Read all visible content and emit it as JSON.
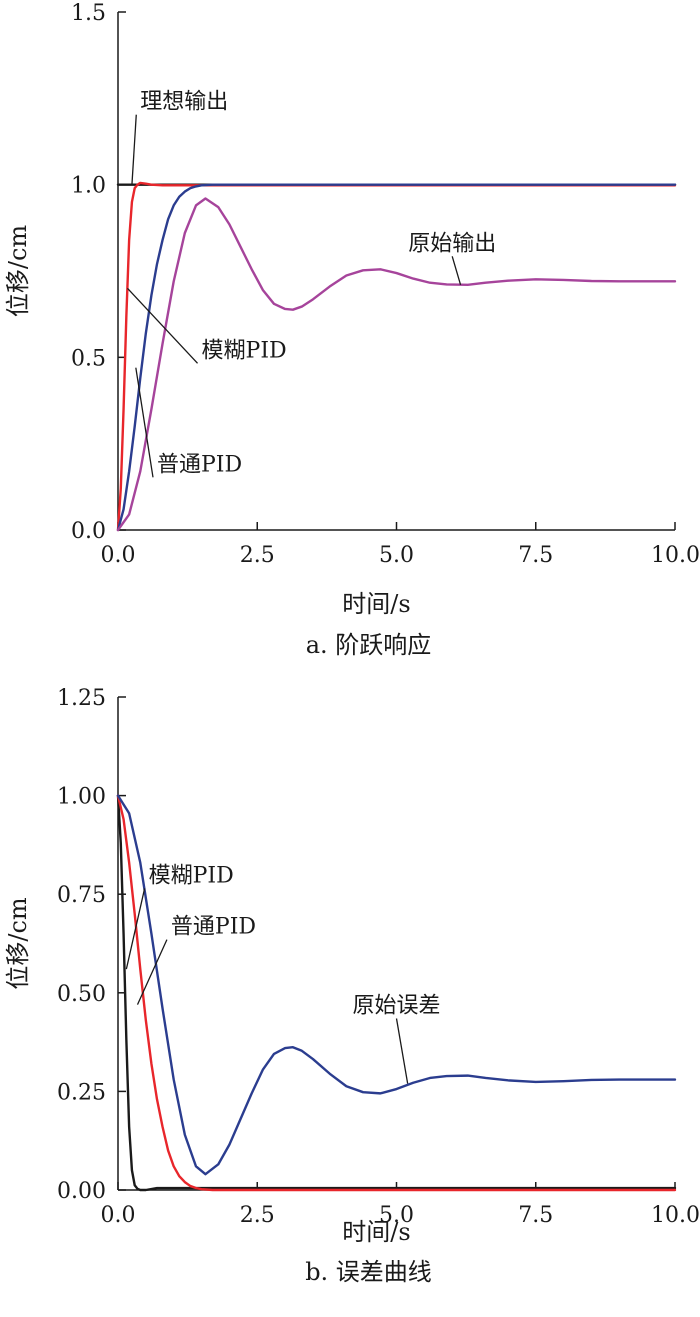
{
  "chart_data": [
    {
      "type": "line",
      "caption": "a. 阶跃响应",
      "xlabel": "时间/s",
      "ylabel": "位移/cm",
      "xlim": [
        0,
        10
      ],
      "ylim": [
        0,
        1.5
      ],
      "xticks": [
        "0.0",
        "2.5",
        "5.0",
        "7.5",
        "10.0"
      ],
      "yticks": [
        "0.0",
        "0.5",
        "1.0",
        "1.5"
      ],
      "series": [
        {
          "name": "理想输出",
          "color": "#1a1a1a",
          "x": [
            0,
            0.25,
            10
          ],
          "y": [
            1.0,
            1.0,
            1.0
          ]
        },
        {
          "name": "模糊PID",
          "color": "#e8262b",
          "x": [
            0,
            0.05,
            0.1,
            0.15,
            0.2,
            0.25,
            0.3,
            0.35,
            0.4,
            0.5,
            0.6,
            0.8,
            1.0,
            1.5,
            2.0,
            3.0,
            10.0
          ],
          "y": [
            0,
            0.12,
            0.35,
            0.62,
            0.84,
            0.95,
            0.99,
            1.0,
            1.005,
            1.003,
            1.0,
            0.998,
            0.998,
            0.998,
            0.998,
            0.998,
            0.998
          ]
        },
        {
          "name": "普通PID",
          "color": "#2b3d8f",
          "x": [
            0,
            0.1,
            0.2,
            0.3,
            0.4,
            0.5,
            0.6,
            0.7,
            0.8,
            0.9,
            1.0,
            1.1,
            1.2,
            1.3,
            1.4,
            1.5,
            1.7,
            2.0,
            3.0,
            10.0
          ],
          "y": [
            0,
            0.06,
            0.17,
            0.3,
            0.44,
            0.57,
            0.68,
            0.77,
            0.84,
            0.9,
            0.94,
            0.965,
            0.98,
            0.99,
            0.995,
            0.998,
            1.0,
            1.0,
            1.0,
            1.0
          ]
        },
        {
          "name": "原始输出",
          "color": "#a6449b",
          "x": [
            0,
            0.2,
            0.4,
            0.6,
            0.8,
            1.0,
            1.2,
            1.4,
            1.57,
            1.8,
            2.0,
            2.2,
            2.4,
            2.6,
            2.8,
            3.0,
            3.14,
            3.3,
            3.5,
            3.8,
            4.1,
            4.4,
            4.71,
            5.0,
            5.3,
            5.6,
            5.9,
            6.28,
            6.6,
            7.0,
            7.5,
            8.0,
            8.5,
            9.0,
            9.5,
            10.0
          ],
          "y": [
            0,
            0.045,
            0.17,
            0.35,
            0.54,
            0.72,
            0.86,
            0.94,
            0.96,
            0.935,
            0.885,
            0.82,
            0.755,
            0.695,
            0.655,
            0.64,
            0.638,
            0.647,
            0.668,
            0.705,
            0.737,
            0.752,
            0.755,
            0.744,
            0.728,
            0.716,
            0.711,
            0.71,
            0.716,
            0.722,
            0.726,
            0.724,
            0.721,
            0.72,
            0.72,
            0.72
          ]
        }
      ],
      "annotations": [
        {
          "text": "理想输出",
          "x": 0.4,
          "y": 1.22,
          "pointX": 0.25,
          "pointY": 1.0,
          "anchor": "start"
        },
        {
          "text": "原始输出",
          "x": 6.0,
          "y": 0.81,
          "pointX": 6.15,
          "pointY": 0.71,
          "anchor": "middle"
        },
        {
          "text": "模糊PID",
          "x": 1.5,
          "y": 0.5,
          "pointX": 0.17,
          "pointY": 0.7,
          "anchor": "start"
        },
        {
          "text": "普通PID",
          "x": 0.7,
          "y": 0.17,
          "pointX": 0.32,
          "pointY": 0.47,
          "anchor": "start"
        }
      ]
    },
    {
      "type": "line",
      "caption": "b. 误差曲线",
      "xlabel": "时间/s",
      "ylabel": "位移/cm",
      "xlim": [
        0,
        10
      ],
      "ylim": [
        0,
        1.25
      ],
      "xticks": [
        "0.0",
        "2.5",
        "5.0",
        "7.5",
        "10.0"
      ],
      "yticks": [
        "0.00",
        "0.25",
        "0.50",
        "0.75",
        "1.00",
        "1.25"
      ],
      "series": [
        {
          "name": "模糊PID",
          "color": "#1a1a1a",
          "x": [
            0,
            0.05,
            0.1,
            0.15,
            0.2,
            0.25,
            0.3,
            0.35,
            0.4,
            0.5,
            0.7,
            1.0,
            2.0,
            10.0
          ],
          "y": [
            1.0,
            0.88,
            0.65,
            0.38,
            0.16,
            0.05,
            0.012,
            0.003,
            0.0,
            0.0,
            0.005,
            0.005,
            0.005,
            0.005
          ]
        },
        {
          "name": "普通PID",
          "color": "#e8262b",
          "x": [
            0,
            0.1,
            0.2,
            0.3,
            0.4,
            0.5,
            0.6,
            0.7,
            0.8,
            0.9,
            1.0,
            1.1,
            1.2,
            1.3,
            1.4,
            1.5,
            1.7,
            2.0,
            3.0,
            10.0
          ],
          "y": [
            1.0,
            0.94,
            0.83,
            0.7,
            0.56,
            0.43,
            0.32,
            0.23,
            0.16,
            0.1,
            0.06,
            0.035,
            0.02,
            0.01,
            0.005,
            0.002,
            0.0,
            0.0,
            0.0,
            0.0
          ]
        },
        {
          "name": "原始误差",
          "color": "#2b3d8f",
          "x": [
            0,
            0.2,
            0.4,
            0.6,
            0.8,
            1.0,
            1.2,
            1.4,
            1.57,
            1.8,
            2.0,
            2.2,
            2.4,
            2.6,
            2.8,
            3.0,
            3.14,
            3.3,
            3.5,
            3.8,
            4.1,
            4.4,
            4.71,
            5.0,
            5.3,
            5.6,
            5.9,
            6.28,
            6.6,
            7.0,
            7.5,
            8.0,
            8.5,
            9.0,
            9.5,
            10.0
          ],
          "y": [
            1.0,
            0.955,
            0.83,
            0.65,
            0.46,
            0.28,
            0.14,
            0.06,
            0.04,
            0.065,
            0.115,
            0.18,
            0.245,
            0.305,
            0.345,
            0.36,
            0.362,
            0.353,
            0.332,
            0.295,
            0.263,
            0.248,
            0.245,
            0.256,
            0.272,
            0.284,
            0.289,
            0.29,
            0.284,
            0.278,
            0.274,
            0.276,
            0.279,
            0.28,
            0.28,
            0.28
          ]
        }
      ],
      "annotations": [
        {
          "text": "模糊PID",
          "x": 0.55,
          "y": 0.78,
          "pointX": 0.15,
          "pointY": 0.56,
          "anchor": "start"
        },
        {
          "text": "普通PID",
          "x": 0.95,
          "y": 0.65,
          "pointX": 0.35,
          "pointY": 0.47,
          "anchor": "start"
        },
        {
          "text": "原始误差",
          "x": 5.0,
          "y": 0.45,
          "pointX": 5.2,
          "pointY": 0.27,
          "anchor": "middle"
        }
      ]
    }
  ]
}
